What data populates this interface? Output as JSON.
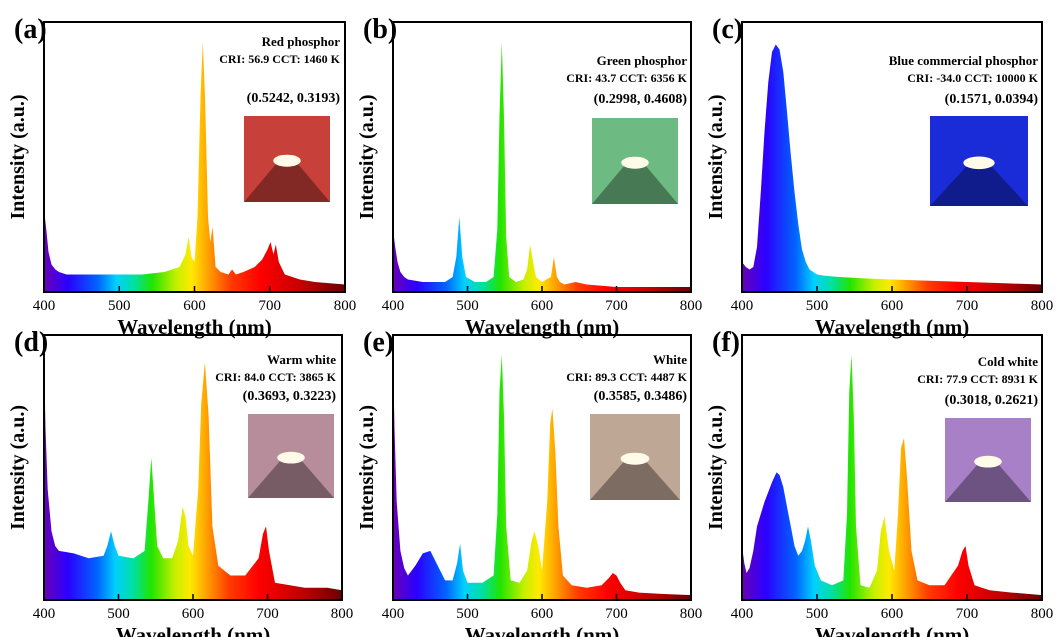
{
  "figure": {
    "xlabel": "Wavelength (nm)",
    "ylabel": "Intensity (a.u.)",
    "x_ticks": [
      "400",
      "500",
      "600",
      "700",
      "800"
    ]
  },
  "chart_data": [
    {
      "type": "area",
      "panel": "(a)",
      "title": "Red phosphor",
      "cri_label": "CRI:",
      "cri": "56.9",
      "cct_label": "CCT:",
      "cct": "1460 K",
      "coords": "(0.5242, 0.3193)",
      "photo_color": "#c8403a",
      "xlabel": "Wavelength (nm)",
      "ylabel": "Intensity (a.u.)",
      "xlim": [
        400,
        800
      ],
      "ylim": [
        0,
        1.08
      ],
      "x": [
        400,
        403,
        406,
        410,
        415,
        420,
        430,
        450,
        470,
        500,
        530,
        560,
        580,
        588,
        592,
        596,
        600,
        604,
        608,
        611,
        614,
        618,
        621,
        624,
        628,
        635,
        645,
        650,
        655,
        665,
        680,
        690,
        697,
        701,
        705,
        708,
        712,
        720,
        740,
        760,
        780,
        800
      ],
      "y": [
        0.33,
        0.25,
        0.16,
        0.11,
        0.09,
        0.08,
        0.07,
        0.07,
        0.07,
        0.07,
        0.07,
        0.08,
        0.1,
        0.15,
        0.22,
        0.14,
        0.12,
        0.3,
        0.78,
        1.0,
        0.78,
        0.3,
        0.2,
        0.26,
        0.1,
        0.08,
        0.07,
        0.09,
        0.07,
        0.08,
        0.1,
        0.13,
        0.17,
        0.2,
        0.15,
        0.19,
        0.12,
        0.07,
        0.05,
        0.04,
        0.035,
        0.03
      ]
    },
    {
      "type": "area",
      "panel": "(b)",
      "title": "Green phosphor",
      "cri_label": "CRI:",
      "cri": "43.7",
      "cct_label": "CCT:",
      "cct": "6356 K",
      "coords": "(0.2998, 0.4608)",
      "photo_color": "#6dbb82",
      "xlabel": "Wavelength (nm)",
      "ylabel": "Intensity (a.u.)",
      "xlim": [
        400,
        800
      ],
      "ylim": [
        0,
        1.08
      ],
      "x": [
        400,
        403,
        406,
        410,
        415,
        420,
        440,
        470,
        480,
        485,
        489,
        493,
        498,
        510,
        525,
        535,
        540,
        543,
        546,
        549,
        552,
        556,
        565,
        575,
        580,
        584,
        588,
        592,
        600,
        612,
        616,
        620,
        624,
        630,
        645,
        660,
        700,
        750,
        800
      ],
      "y": [
        0.25,
        0.18,
        0.12,
        0.08,
        0.06,
        0.05,
        0.04,
        0.04,
        0.06,
        0.14,
        0.3,
        0.14,
        0.06,
        0.04,
        0.04,
        0.06,
        0.25,
        0.7,
        1.0,
        0.7,
        0.22,
        0.06,
        0.04,
        0.05,
        0.09,
        0.19,
        0.12,
        0.06,
        0.04,
        0.06,
        0.14,
        0.06,
        0.04,
        0.03,
        0.04,
        0.03,
        0.02,
        0.02,
        0.02
      ]
    },
    {
      "type": "area",
      "panel": "(c)",
      "title": "Blue commercial phosphor",
      "cri_label": "CRI:",
      "cri": "-34.0",
      "cct_label": "CCT:",
      "cct": "10000 K",
      "coords": "(0.1571, 0.0394)",
      "photo_color": "#1a2cd8",
      "xlabel": "Wavelength (nm)",
      "ylabel": "Intensity (a.u.)",
      "xlim": [
        400,
        800
      ],
      "ylim": [
        0,
        1.08
      ],
      "x": [
        400,
        405,
        410,
        415,
        420,
        425,
        430,
        435,
        440,
        445,
        450,
        455,
        460,
        465,
        470,
        475,
        480,
        485,
        490,
        500,
        510,
        530,
        560,
        600,
        650,
        700,
        750,
        800
      ],
      "y": [
        0.12,
        0.1,
        0.09,
        0.1,
        0.18,
        0.4,
        0.64,
        0.84,
        0.96,
        0.99,
        0.97,
        0.88,
        0.72,
        0.55,
        0.4,
        0.27,
        0.17,
        0.12,
        0.09,
        0.07,
        0.065,
        0.06,
        0.055,
        0.05,
        0.045,
        0.04,
        0.035,
        0.03
      ]
    },
    {
      "type": "area",
      "panel": "(d)",
      "title": "Warm white",
      "cri_label": "CRI:",
      "cri": "84.0",
      "cct_label": "CCT:",
      "cct": "3865 K",
      "coords": "(0.3693, 0.3223)",
      "photo_color": "#b78d9c",
      "xlabel": "Wavelength (nm)",
      "ylabel": "Intensity (a.u.)",
      "xlim": [
        400,
        800
      ],
      "ylim": [
        0,
        1.08
      ],
      "x": [
        400,
        402,
        405,
        410,
        415,
        420,
        440,
        460,
        480,
        485,
        490,
        495,
        500,
        520,
        535,
        540,
        544,
        548,
        552,
        560,
        572,
        580,
        586,
        590,
        594,
        600,
        607,
        611,
        616,
        621,
        626,
        634,
        650,
        670,
        688,
        694,
        698,
        702,
        710,
        730,
        750,
        780,
        800
      ],
      "y": [
        1.0,
        0.7,
        0.45,
        0.28,
        0.22,
        0.2,
        0.19,
        0.17,
        0.18,
        0.22,
        0.28,
        0.22,
        0.18,
        0.17,
        0.2,
        0.4,
        0.58,
        0.4,
        0.22,
        0.17,
        0.17,
        0.24,
        0.38,
        0.34,
        0.22,
        0.18,
        0.45,
        0.8,
        0.97,
        0.75,
        0.3,
        0.14,
        0.1,
        0.1,
        0.17,
        0.27,
        0.3,
        0.2,
        0.07,
        0.06,
        0.05,
        0.05,
        0.04
      ]
    },
    {
      "type": "area",
      "panel": "(e)",
      "title": "White",
      "cri_label": "CRI:",
      "cri": "89.3",
      "cct_label": "CCT:",
      "cct": "4487 K",
      "coords": "(0.3585, 0.3486)",
      "photo_color": "#bfa795",
      "xlabel": "Wavelength (nm)",
      "ylabel": "Intensity (a.u.)",
      "xlim": [
        400,
        800
      ],
      "ylim": [
        0,
        1.08
      ],
      "x": [
        400,
        402,
        405,
        410,
        415,
        420,
        430,
        440,
        450,
        460,
        470,
        480,
        486,
        490,
        494,
        500,
        520,
        535,
        540,
        543,
        546,
        549,
        552,
        558,
        570,
        580,
        586,
        590,
        595,
        600,
        607,
        611,
        614,
        618,
        622,
        628,
        640,
        660,
        680,
        690,
        695,
        700,
        705,
        712,
        730,
        760,
        800
      ],
      "y": [
        1.0,
        0.7,
        0.4,
        0.2,
        0.13,
        0.1,
        0.14,
        0.19,
        0.2,
        0.14,
        0.08,
        0.08,
        0.15,
        0.23,
        0.12,
        0.07,
        0.07,
        0.1,
        0.35,
        0.85,
        1.0,
        0.75,
        0.3,
        0.08,
        0.07,
        0.12,
        0.24,
        0.28,
        0.22,
        0.12,
        0.4,
        0.72,
        0.78,
        0.6,
        0.3,
        0.1,
        0.06,
        0.05,
        0.06,
        0.09,
        0.11,
        0.1,
        0.07,
        0.04,
        0.03,
        0.025,
        0.02
      ]
    },
    {
      "type": "area",
      "panel": "(f)",
      "title": "Cold white",
      "cri_label": "CRI:",
      "cri": "77.9",
      "cct_label": "CCT:",
      "cct": "8931 K",
      "coords": "(0.3018, 0.2621)",
      "photo_color": "#a880c8",
      "xlabel": "Wavelength (nm)",
      "ylabel": "Intensity (a.u.)",
      "xlim": [
        400,
        800
      ],
      "ylim": [
        0,
        1.08
      ],
      "x": [
        400,
        403,
        406,
        410,
        415,
        420,
        430,
        440,
        446,
        450,
        455,
        460,
        465,
        470,
        475,
        480,
        484,
        488,
        492,
        497,
        505,
        520,
        535,
        540,
        543,
        546,
        549,
        552,
        558,
        570,
        580,
        585,
        590,
        596,
        603,
        608,
        612,
        616,
        620,
        626,
        634,
        650,
        670,
        688,
        694,
        698,
        702,
        710,
        730,
        760,
        800
      ],
      "y": [
        0.22,
        0.15,
        0.11,
        0.13,
        0.2,
        0.3,
        0.4,
        0.48,
        0.52,
        0.51,
        0.46,
        0.38,
        0.3,
        0.22,
        0.18,
        0.2,
        0.24,
        0.3,
        0.24,
        0.14,
        0.08,
        0.06,
        0.08,
        0.35,
        0.85,
        1.0,
        0.75,
        0.3,
        0.06,
        0.05,
        0.12,
        0.28,
        0.34,
        0.2,
        0.12,
        0.35,
        0.62,
        0.66,
        0.5,
        0.2,
        0.08,
        0.06,
        0.06,
        0.14,
        0.2,
        0.22,
        0.14,
        0.06,
        0.04,
        0.03,
        0.02
      ]
    }
  ]
}
